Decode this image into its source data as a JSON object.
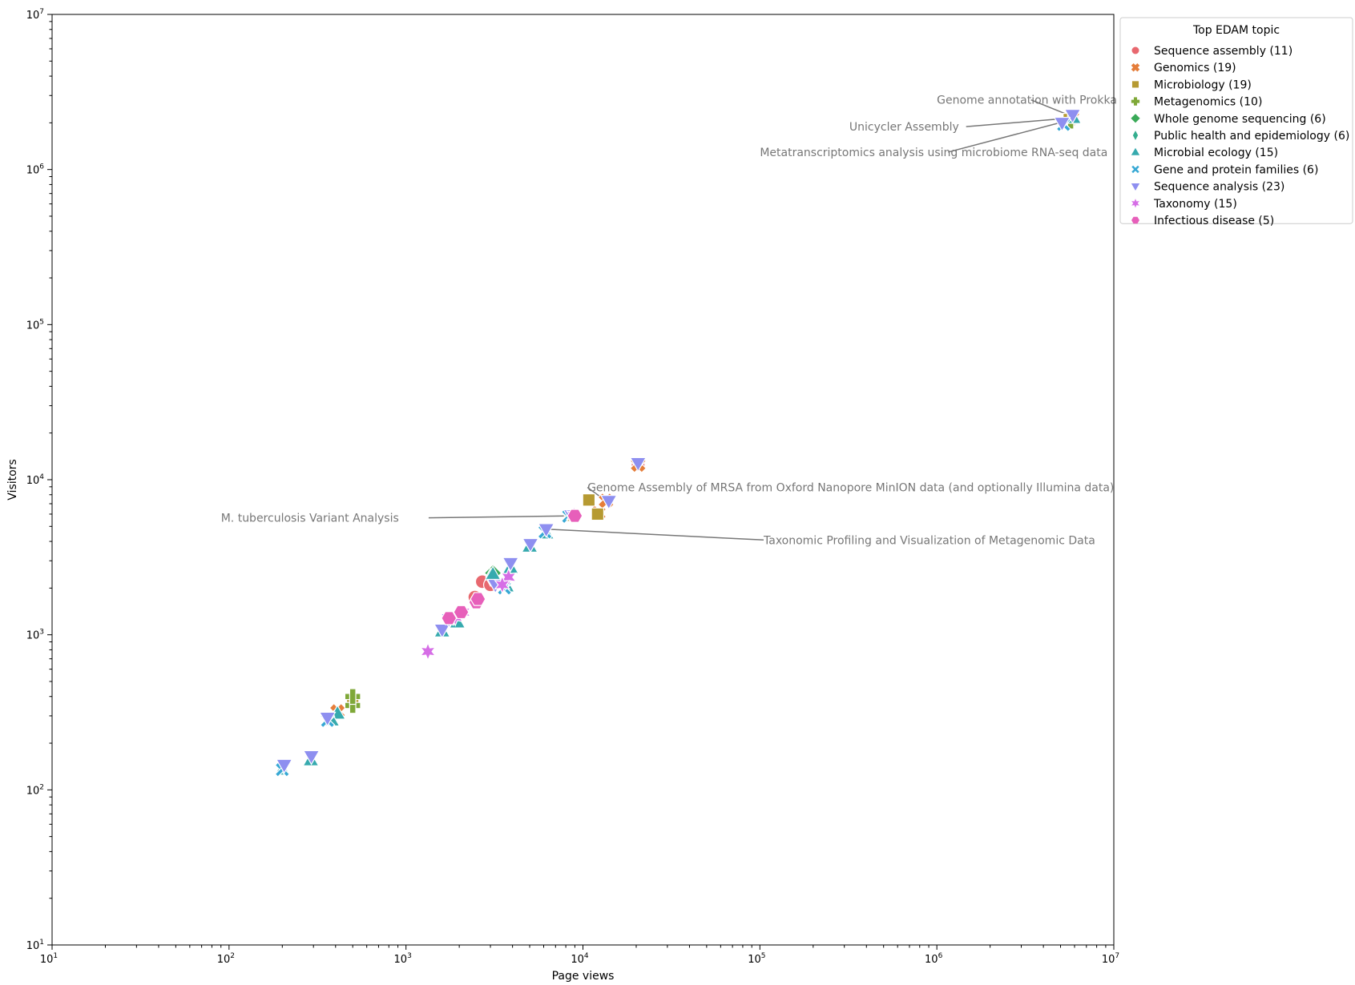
{
  "chart_data": {
    "type": "scatter",
    "xlabel": "Page views",
    "ylabel": "Visitors",
    "xscale": "log",
    "yscale": "log",
    "xlim": [
      10,
      10000000
    ],
    "ylim": [
      10,
      10000000
    ],
    "ticks": [
      {
        "value": 10,
        "base": "10",
        "exp": "1"
      },
      {
        "value": 100,
        "base": "10",
        "exp": "2"
      },
      {
        "value": 1000,
        "base": "10",
        "exp": "3"
      },
      {
        "value": 10000,
        "base": "10",
        "exp": "4"
      },
      {
        "value": 100000,
        "base": "10",
        "exp": "5"
      },
      {
        "value": 1000000,
        "base": "10",
        "exp": "6"
      },
      {
        "value": 10000000,
        "base": "10",
        "exp": "7"
      }
    ],
    "grid": false,
    "legend": {
      "title": "Top EDAM topic",
      "placement": "outside-right-top",
      "entries": [
        {
          "label": "Sequence assembly (11)",
          "color": "#e8686f",
          "marker": "circle"
        },
        {
          "label": "Genomics (19)",
          "color": "#e57d3a",
          "marker": "x-thick"
        },
        {
          "label": "Microbiology (19)",
          "color": "#b69a32",
          "marker": "square"
        },
        {
          "label": "Metagenomics (10)",
          "color": "#7fa838",
          "marker": "plus"
        },
        {
          "label": "Whole genome sequencing (6)",
          "color": "#3aaa58",
          "marker": "diamond"
        },
        {
          "label": "Public health and epidemiology (6)",
          "color": "#34ae8e",
          "marker": "diamond-thin"
        },
        {
          "label": "Microbial ecology (15)",
          "color": "#36aaae",
          "marker": "triangle-up"
        },
        {
          "label": "Gene and protein families (6)",
          "color": "#36a8d4",
          "marker": "x-thin"
        },
        {
          "label": "Sequence analysis (23)",
          "color": "#8e8ff0",
          "marker": "triangle-down"
        },
        {
          "label": "Taxonomy (15)",
          "color": "#d66ee6",
          "marker": "star"
        },
        {
          "label": "Infectious disease (5)",
          "color": "#e75fba",
          "marker": "hexagon"
        }
      ]
    },
    "series": [
      {
        "name": "Sequence assembly (11)",
        "points": [
          [
            20500,
            12500
          ],
          [
            2700,
            2200
          ],
          [
            2450,
            1750
          ],
          [
            3000,
            2100
          ],
          [
            5800000,
            2200000
          ]
        ]
      },
      {
        "name": "Genomics (19)",
        "points": [
          [
            12200,
            6100
          ],
          [
            13500,
            7300
          ],
          [
            20500,
            12500
          ],
          [
            5800000,
            2150000
          ],
          [
            410,
            320
          ]
        ]
      },
      {
        "name": "Microbiology (19)",
        "points": [
          [
            10800,
            7400
          ],
          [
            12100,
            6000
          ],
          [
            500,
            380
          ],
          [
            8500,
            5900
          ],
          [
            5600000,
            2100000
          ]
        ]
      },
      {
        "name": "Metagenomics (10)",
        "points": [
          [
            500,
            350
          ],
          [
            500,
            400
          ],
          [
            5700000,
            2050000
          ]
        ]
      },
      {
        "name": "Whole genome sequencing (6)",
        "points": [
          [
            3100,
            2500
          ]
        ]
      },
      {
        "name": "Public health and epidemiology (6)",
        "points": [
          [
            3000,
            2350
          ]
        ]
      },
      {
        "name": "Microbial ecology (15)",
        "points": [
          [
            410,
            310
          ],
          [
            380,
            280
          ],
          [
            200,
            135
          ],
          [
            290,
            155
          ],
          [
            6200,
            4500
          ],
          [
            5000,
            3700
          ],
          [
            3700,
            2050
          ],
          [
            1950,
            1200
          ],
          [
            3100,
            2450
          ],
          [
            5900000,
            2150000
          ],
          [
            3900,
            2700
          ],
          [
            1600,
            1050
          ]
        ]
      },
      {
        "name": "Gene and protein families (6)",
        "points": [
          [
            360,
            280
          ],
          [
            200,
            135
          ],
          [
            6100,
            4600
          ],
          [
            3600,
            2000
          ],
          [
            5200000,
            1950000
          ],
          [
            8300,
            5800
          ]
        ]
      },
      {
        "name": "Sequence analysis (23)",
        "points": [
          [
            205,
            145
          ],
          [
            292,
            165
          ],
          [
            360,
            292
          ],
          [
            1600,
            1080
          ],
          [
            1750,
            1260
          ],
          [
            3200,
            2100
          ],
          [
            3900,
            2900
          ],
          [
            5050,
            3850
          ],
          [
            6200,
            4800
          ],
          [
            8600,
            5900
          ],
          [
            14000,
            7300
          ],
          [
            20500,
            12800
          ],
          [
            5850000,
            2250000
          ],
          [
            5100000,
            2000000
          ],
          [
            1850,
            1300
          ]
        ]
      },
      {
        "name": "Taxonomy (15)",
        "points": [
          [
            1330,
            780
          ],
          [
            3800,
            2350
          ],
          [
            3500,
            2100
          ],
          [
            1900,
            1300
          ],
          [
            2100,
            1400
          ],
          [
            8900,
            5900
          ]
        ]
      },
      {
        "name": "Infectious disease (5)",
        "points": [
          [
            9000,
            5850
          ],
          [
            1750,
            1280
          ],
          [
            2050,
            1400
          ],
          [
            2500,
            1620
          ],
          [
            2550,
            1700
          ]
        ]
      }
    ],
    "annotations": [
      {
        "text": "Genome annotation with Prokka",
        "x": 5800000,
        "y": 2200000,
        "text_x": 1000000,
        "text_y": 2650000
      },
      {
        "text": "Unicycler Assembly",
        "x": 5800000,
        "y": 2150000,
        "text_x": 320000,
        "text_y": 1780000
      },
      {
        "text": "Metatranscriptomics analysis using microbiome RNA-seq data",
        "x": 5800000,
        "y": 2100000,
        "text_x": 100000,
        "text_y": 1220000
      },
      {
        "text": "Genome Assembly of MRSA from Oxford Nanopore MinION data (and optionally Illumina data)",
        "x": 13500,
        "y": 7300,
        "text_x": 10600,
        "text_y": 8400
      },
      {
        "text": "M. tuberculosis Variant Analysis",
        "x": 9000,
        "y": 5850,
        "text_x": 90,
        "text_y": 5350
      },
      {
        "text": "Taxonomic Profiling and Visualization of Metagenomic Data",
        "x": 6200,
        "y": 4800,
        "text_x": 105000,
        "text_y": 3850
      }
    ]
  }
}
